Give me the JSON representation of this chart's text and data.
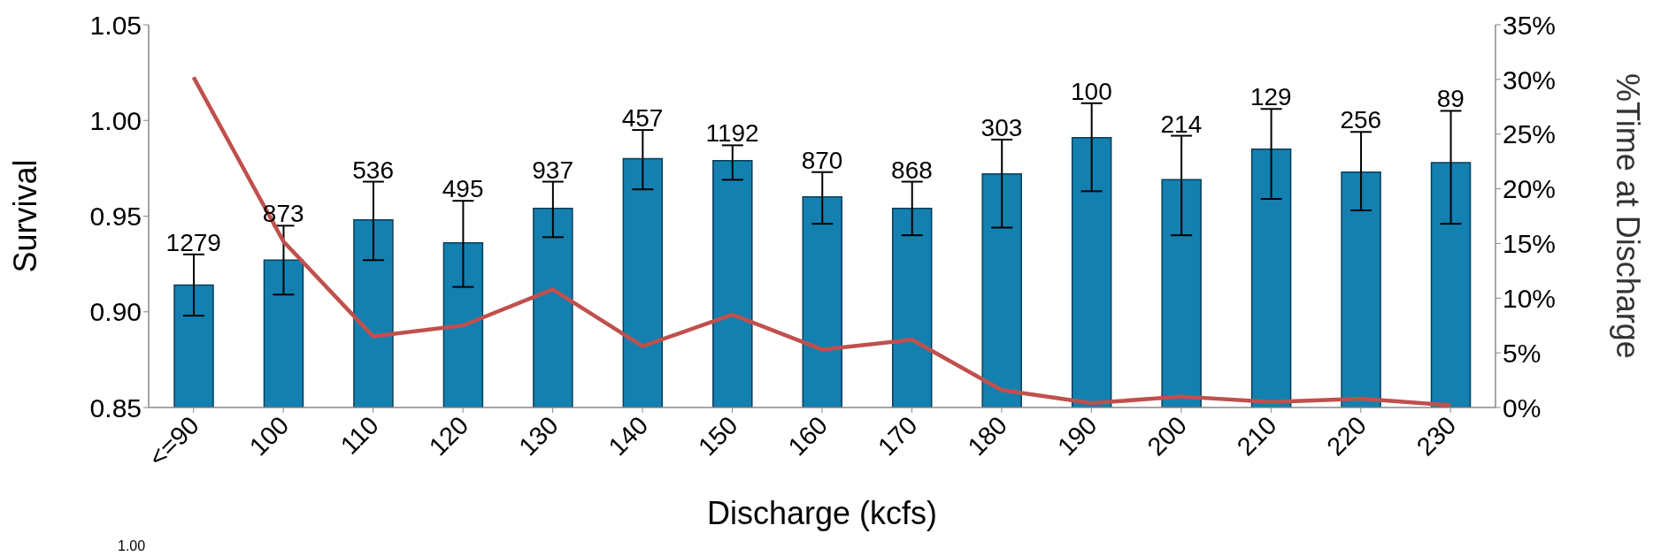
{
  "chart_data": {
    "type": "bar",
    "xlabel": "Discharge (kcfs)",
    "ylabel": "Survival",
    "y2label": "%Time at Discharge",
    "categories": [
      "<=90",
      "100",
      "110",
      "120",
      "130",
      "140",
      "150",
      "160",
      "170",
      "180",
      "190",
      "200",
      "210",
      "220",
      "230"
    ],
    "series": [
      {
        "color": "#1380b0",
        "values": [
          0.914,
          0.927,
          0.948,
          0.936,
          0.954,
          0.98,
          0.979,
          0.96,
          0.954,
          0.972,
          0.991,
          0.969,
          0.985,
          0.973,
          0.978
        ],
        "errors": [
          [
            0.898,
            0.93
          ],
          [
            0.909,
            0.945
          ],
          [
            0.927,
            0.968
          ],
          [
            0.913,
            0.958
          ],
          [
            0.939,
            0.968
          ],
          [
            0.964,
            0.995
          ],
          [
            0.969,
            0.987
          ],
          [
            0.946,
            0.973
          ],
          [
            0.94,
            0.968
          ],
          [
            0.944,
            0.99
          ],
          [
            0.963,
            1.009
          ],
          [
            0.94,
            0.992
          ],
          [
            0.959,
            1.006
          ],
          [
            0.953,
            0.994
          ],
          [
            0.946,
            1.005
          ]
        ]
      },
      {
        "type": "line",
        "axis": "y2",
        "color": "#c0504d",
        "values": [
          30.2,
          15.2,
          6.5,
          7.5,
          10.8,
          5.6,
          8.5,
          5.3,
          6.2,
          1.6,
          0.4,
          1.0,
          0.5,
          0.8,
          0.2
        ]
      }
    ],
    "ylim": [
      0.85,
      1.05
    ],
    "yticks": [
      0.85,
      {
        "value": 0.9,
        "label": "0.90"
      },
      0.95,
      {
        "value": 1,
        "label": "1.00"
      },
      1.05
    ],
    "y2lim": [
      0,
      35
    ],
    "y2ticks": [
      {
        "value": 0,
        "label": "0%"
      },
      {
        "value": 5,
        "label": "5%"
      },
      {
        "value": 10,
        "label": "10%"
      },
      {
        "value": 15,
        "label": "15%"
      },
      {
        "value": 20,
        "label": "20%"
      },
      {
        "value": 25,
        "label": "25%"
      },
      {
        "value": 30,
        "label": "30%"
      },
      {
        "value": 35,
        "label": "35%"
      }
    ],
    "grid": false,
    "legend": false,
    "annotations": [
      {
        "text": "1279",
        "x": "<=90",
        "y": 0.93
      },
      {
        "text": "873",
        "x": "100",
        "y": 0.945
      },
      {
        "text": "536",
        "x": "110",
        "y": 0.968
      },
      {
        "text": "495",
        "x": "120",
        "y": 0.958
      },
      {
        "text": "937",
        "x": "130",
        "y": 0.968
      },
      {
        "text": "457",
        "x": "140",
        "y": 0.995
      },
      {
        "text": "1192",
        "x": "150",
        "y": 0.987
      },
      {
        "text": "870",
        "x": "160",
        "y": 0.973
      },
      {
        "text": "868",
        "x": "170",
        "y": 0.968
      },
      {
        "text": "303",
        "x": "180",
        "y": 0.99
      },
      {
        "text": "100",
        "x": "190",
        "y": 1.009
      },
      {
        "text": "214",
        "x": "200",
        "y": 0.992
      },
      {
        "text": "129",
        "x": "210",
        "y": 1.006
      },
      {
        "text": "256",
        "x": "220",
        "y": 0.994
      },
      {
        "text": "89",
        "x": "230",
        "y": 1.005
      },
      "1.00"
    ]
  }
}
